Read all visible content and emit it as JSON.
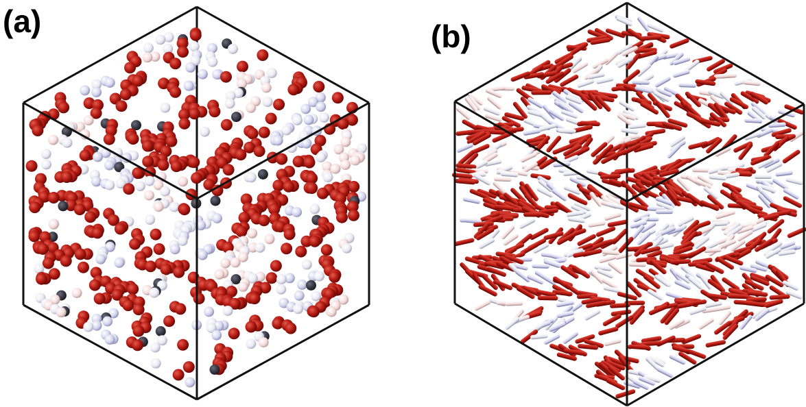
{
  "panels": [
    {
      "id": "a",
      "label": "(a)",
      "particle_shape": "sphere"
    },
    {
      "id": "b",
      "label": "(b)",
      "particle_shape": "rod"
    }
  ],
  "colors": {
    "frame": "#111111",
    "red_particles": "#b51a12",
    "red_dark": "#6e0a06",
    "white_particles": "#f1f1f8",
    "lavender_particles": "#d6d6ef",
    "pink_particles": "#f6dede",
    "dark_particles": "#2a2a36",
    "background": "#ffffff"
  }
}
